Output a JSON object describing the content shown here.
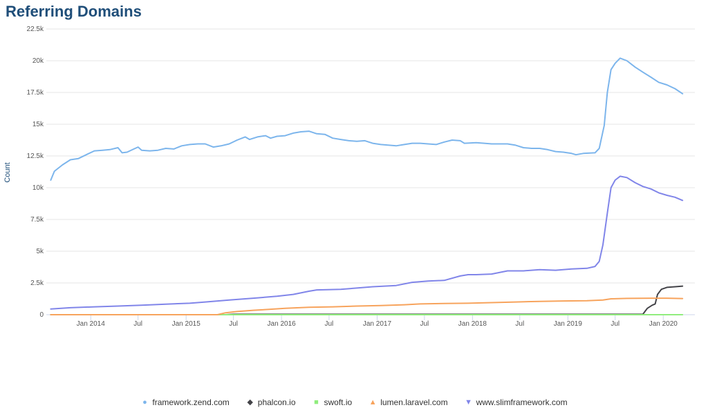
{
  "chart_data": {
    "type": "line",
    "title": "Referring Domains",
    "ylabel": "Count",
    "xlabel": "",
    "ylim": [
      0,
      22500
    ],
    "xlim": [
      "2013-07-15",
      "2020-05-01"
    ],
    "yticks": [
      {
        "value": 0,
        "label": "0"
      },
      {
        "value": 2500,
        "label": "2.5k"
      },
      {
        "value": 5000,
        "label": "5k"
      },
      {
        "value": 7500,
        "label": "7.5k"
      },
      {
        "value": 10000,
        "label": "10k"
      },
      {
        "value": 12500,
        "label": "12.5k"
      },
      {
        "value": 15000,
        "label": "15k"
      },
      {
        "value": 17500,
        "label": "17.5k"
      },
      {
        "value": 20000,
        "label": "20k"
      },
      {
        "value": 22500,
        "label": "22.5k"
      }
    ],
    "xticks": [
      {
        "date": "2014-01-01",
        "label": "Jan 2014"
      },
      {
        "date": "2014-07-01",
        "label": "Jul"
      },
      {
        "date": "2015-01-01",
        "label": "Jan 2015"
      },
      {
        "date": "2015-07-01",
        "label": "Jul"
      },
      {
        "date": "2016-01-01",
        "label": "Jan 2016"
      },
      {
        "date": "2016-07-01",
        "label": "Jul"
      },
      {
        "date": "2017-01-01",
        "label": "Jan 2017"
      },
      {
        "date": "2017-07-01",
        "label": "Jul"
      },
      {
        "date": "2018-01-01",
        "label": "Jan 2018"
      },
      {
        "date": "2018-07-01",
        "label": "Jul"
      },
      {
        "date": "2019-01-01",
        "label": "Jan 2019"
      },
      {
        "date": "2019-07-01",
        "label": "Jul"
      },
      {
        "date": "2020-01-01",
        "label": "Jan 2020"
      }
    ],
    "grid": true,
    "legend_position": "bottom",
    "series": [
      {
        "name": "framework.zend.com",
        "color": "#7cb5ec",
        "marker": "circle",
        "points": [
          [
            "2013-08-01",
            10600
          ],
          [
            "2013-08-15",
            11300
          ],
          [
            "2013-09-15",
            11800
          ],
          [
            "2013-10-15",
            12200
          ],
          [
            "2013-11-15",
            12300
          ],
          [
            "2013-12-15",
            12600
          ],
          [
            "2014-01-15",
            12900
          ],
          [
            "2014-02-15",
            12950
          ],
          [
            "2014-03-15",
            13000
          ],
          [
            "2014-04-15",
            13150
          ],
          [
            "2014-05-01",
            12750
          ],
          [
            "2014-05-20",
            12800
          ],
          [
            "2014-06-15",
            13050
          ],
          [
            "2014-07-01",
            13200
          ],
          [
            "2014-07-15",
            12950
          ],
          [
            "2014-08-15",
            12900
          ],
          [
            "2014-09-15",
            12950
          ],
          [
            "2014-10-15",
            13100
          ],
          [
            "2014-11-15",
            13050
          ],
          [
            "2014-12-15",
            13300
          ],
          [
            "2015-01-15",
            13400
          ],
          [
            "2015-02-15",
            13450
          ],
          [
            "2015-03-15",
            13450
          ],
          [
            "2015-04-15",
            13200
          ],
          [
            "2015-05-15",
            13300
          ],
          [
            "2015-06-15",
            13450
          ],
          [
            "2015-07-15",
            13750
          ],
          [
            "2015-08-15",
            14000
          ],
          [
            "2015-09-01",
            13800
          ],
          [
            "2015-10-01",
            14000
          ],
          [
            "2015-11-01",
            14100
          ],
          [
            "2015-11-20",
            13900
          ],
          [
            "2015-12-15",
            14050
          ],
          [
            "2016-01-15",
            14100
          ],
          [
            "2016-02-15",
            14300
          ],
          [
            "2016-03-15",
            14400
          ],
          [
            "2016-04-15",
            14450
          ],
          [
            "2016-05-15",
            14250
          ],
          [
            "2016-06-15",
            14200
          ],
          [
            "2016-07-15",
            13900
          ],
          [
            "2016-08-15",
            13800
          ],
          [
            "2016-09-15",
            13700
          ],
          [
            "2016-10-15",
            13650
          ],
          [
            "2016-11-15",
            13700
          ],
          [
            "2016-12-15",
            13500
          ],
          [
            "2017-01-15",
            13400
          ],
          [
            "2017-02-15",
            13350
          ],
          [
            "2017-03-15",
            13300
          ],
          [
            "2017-04-15",
            13400
          ],
          [
            "2017-05-15",
            13500
          ],
          [
            "2017-06-15",
            13500
          ],
          [
            "2017-07-15",
            13450
          ],
          [
            "2017-08-15",
            13400
          ],
          [
            "2017-09-15",
            13600
          ],
          [
            "2017-10-15",
            13750
          ],
          [
            "2017-11-15",
            13700
          ],
          [
            "2017-12-01",
            13500
          ],
          [
            "2018-01-15",
            13550
          ],
          [
            "2018-02-15",
            13500
          ],
          [
            "2018-03-15",
            13450
          ],
          [
            "2018-04-15",
            13450
          ],
          [
            "2018-05-15",
            13450
          ],
          [
            "2018-06-15",
            13350
          ],
          [
            "2018-07-15",
            13150
          ],
          [
            "2018-08-15",
            13100
          ],
          [
            "2018-09-15",
            13100
          ],
          [
            "2018-10-15",
            13000
          ],
          [
            "2018-11-15",
            12850
          ],
          [
            "2018-12-15",
            12800
          ],
          [
            "2019-01-15",
            12700
          ],
          [
            "2019-02-01",
            12600
          ],
          [
            "2019-03-01",
            12700
          ],
          [
            "2019-04-15",
            12750
          ],
          [
            "2019-05-01",
            13100
          ],
          [
            "2019-05-20",
            14900
          ],
          [
            "2019-06-01",
            17500
          ],
          [
            "2019-06-15",
            19300
          ],
          [
            "2019-07-01",
            19800
          ],
          [
            "2019-07-20",
            20200
          ],
          [
            "2019-08-15",
            20000
          ],
          [
            "2019-09-15",
            19500
          ],
          [
            "2019-10-15",
            19100
          ],
          [
            "2019-11-15",
            18700
          ],
          [
            "2019-12-15",
            18300
          ],
          [
            "2020-01-15",
            18100
          ],
          [
            "2020-02-15",
            17800
          ],
          [
            "2020-03-15",
            17400
          ]
        ]
      },
      {
        "name": "phalcon.io",
        "color": "#434348",
        "marker": "diamond",
        "points": [
          [
            "2013-08-01",
            0
          ],
          [
            "2015-06-01",
            0
          ],
          [
            "2015-07-01",
            30
          ],
          [
            "2019-10-15",
            30
          ],
          [
            "2019-11-01",
            500
          ],
          [
            "2019-11-20",
            750
          ],
          [
            "2019-12-01",
            850
          ],
          [
            "2019-12-10",
            1600
          ],
          [
            "2019-12-25",
            2000
          ],
          [
            "2020-01-15",
            2150
          ],
          [
            "2020-02-15",
            2200
          ],
          [
            "2020-03-15",
            2250
          ]
        ]
      },
      {
        "name": "swoft.io",
        "color": "#90ed7d",
        "marker": "square",
        "points": [
          [
            "2013-08-01",
            0
          ],
          [
            "2020-03-15",
            0
          ]
        ]
      },
      {
        "name": "lumen.laravel.com",
        "color": "#f7a35c",
        "marker": "triangle",
        "points": [
          [
            "2013-08-01",
            0
          ],
          [
            "2015-05-01",
            0
          ],
          [
            "2015-06-01",
            150
          ],
          [
            "2015-07-15",
            250
          ],
          [
            "2015-09-15",
            350
          ],
          [
            "2015-11-15",
            420
          ],
          [
            "2016-01-15",
            500
          ],
          [
            "2016-04-15",
            580
          ],
          [
            "2016-07-15",
            620
          ],
          [
            "2016-10-15",
            680
          ],
          [
            "2017-01-15",
            720
          ],
          [
            "2017-04-15",
            780
          ],
          [
            "2017-06-15",
            850
          ],
          [
            "2017-09-15",
            880
          ],
          [
            "2017-12-15",
            900
          ],
          [
            "2018-03-15",
            950
          ],
          [
            "2018-06-15",
            1000
          ],
          [
            "2018-09-15",
            1050
          ],
          [
            "2018-12-15",
            1080
          ],
          [
            "2019-03-15",
            1100
          ],
          [
            "2019-05-15",
            1150
          ],
          [
            "2019-06-15",
            1250
          ],
          [
            "2019-08-15",
            1280
          ],
          [
            "2019-11-15",
            1300
          ],
          [
            "2020-01-15",
            1300
          ],
          [
            "2020-03-15",
            1270
          ]
        ]
      },
      {
        "name": "www.slimframework.com",
        "color": "#8085e9",
        "marker": "triangle-down",
        "points": [
          [
            "2013-08-01",
            450
          ],
          [
            "2013-10-15",
            550
          ],
          [
            "2014-01-15",
            620
          ],
          [
            "2014-04-15",
            680
          ],
          [
            "2014-07-15",
            750
          ],
          [
            "2014-10-15",
            830
          ],
          [
            "2015-01-15",
            900
          ],
          [
            "2015-03-15",
            1000
          ],
          [
            "2015-06-15",
            1150
          ],
          [
            "2015-09-15",
            1300
          ],
          [
            "2015-12-15",
            1450
          ],
          [
            "2016-02-15",
            1600
          ],
          [
            "2016-04-15",
            1850
          ],
          [
            "2016-05-15",
            1950
          ],
          [
            "2016-08-15",
            2000
          ],
          [
            "2016-10-15",
            2100
          ],
          [
            "2016-12-15",
            2200
          ],
          [
            "2017-03-15",
            2300
          ],
          [
            "2017-05-15",
            2550
          ],
          [
            "2017-07-15",
            2650
          ],
          [
            "2017-09-15",
            2700
          ],
          [
            "2017-11-15",
            3050
          ],
          [
            "2017-12-15",
            3150
          ],
          [
            "2018-01-15",
            3150
          ],
          [
            "2018-03-15",
            3200
          ],
          [
            "2018-05-15",
            3450
          ],
          [
            "2018-07-15",
            3450
          ],
          [
            "2018-09-15",
            3550
          ],
          [
            "2018-11-15",
            3500
          ],
          [
            "2019-01-15",
            3600
          ],
          [
            "2019-03-15",
            3650
          ],
          [
            "2019-04-15",
            3800
          ],
          [
            "2019-05-01",
            4200
          ],
          [
            "2019-05-15",
            5500
          ],
          [
            "2019-06-01",
            8000
          ],
          [
            "2019-06-15",
            10000
          ],
          [
            "2019-07-01",
            10600
          ],
          [
            "2019-07-20",
            10900
          ],
          [
            "2019-08-15",
            10800
          ],
          [
            "2019-09-15",
            10400
          ],
          [
            "2019-10-15",
            10100
          ],
          [
            "2019-11-15",
            9900
          ],
          [
            "2019-12-15",
            9600
          ],
          [
            "2020-01-15",
            9400
          ],
          [
            "2020-02-15",
            9250
          ],
          [
            "2020-03-15",
            9000
          ]
        ]
      }
    ]
  }
}
